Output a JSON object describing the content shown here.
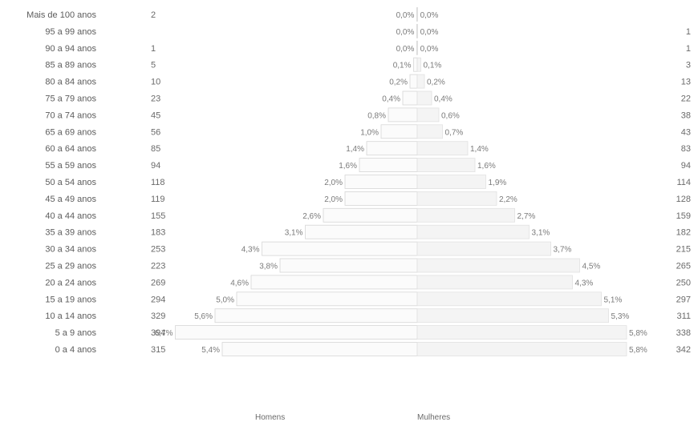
{
  "chart_data": {
    "type": "bar",
    "orientation": "horizontal",
    "layout": "population-pyramid",
    "categories": [
      "Mais de 100 anos",
      "95 a 99 anos",
      "90 a 94 anos",
      "85 a 89 anos",
      "80 a 84 anos",
      "75 a 79 anos",
      "70 a 74 anos",
      "65 a 69 anos",
      "60 a 64 anos",
      "55 a 59 anos",
      "50 a 54 anos",
      "45 a 49 anos",
      "40 a 44 anos",
      "35 a 39 anos",
      "30 a 34 anos",
      "25 a 29 anos",
      "20 a 24 anos",
      "15 a 19 anos",
      "10 a 14 anos",
      "5 a 9 anos",
      "0 a 4 anos"
    ],
    "series": [
      {
        "name": "Homens",
        "side": "left",
        "counts": [
          "2",
          "",
          "1",
          "5",
          "10",
          "23",
          "45",
          "56",
          "85",
          "94",
          "118",
          "119",
          "155",
          "183",
          "253",
          "223",
          "269",
          "294",
          "329",
          "394",
          "315"
        ],
        "values": [
          0.0,
          0.0,
          0.0,
          0.1,
          0.2,
          0.4,
          0.8,
          1.0,
          1.4,
          1.6,
          2.0,
          2.0,
          2.6,
          3.1,
          4.3,
          3.8,
          4.6,
          5.0,
          5.6,
          6.7,
          5.4
        ],
        "labels": [
          "0,0%",
          "0,0%",
          "0,0%",
          "0,1%",
          "0,2%",
          "0,4%",
          "0,8%",
          "1,0%",
          "1,4%",
          "1,6%",
          "2,0%",
          "2,0%",
          "2,6%",
          "3,1%",
          "4,3%",
          "3,8%",
          "4,6%",
          "5,0%",
          "5,6%",
          "6,7%",
          "5,4%"
        ]
      },
      {
        "name": "Mulheres",
        "side": "right",
        "counts": [
          "",
          "1",
          "1",
          "3",
          "13",
          "22",
          "38",
          "43",
          "83",
          "94",
          "114",
          "128",
          "159",
          "182",
          "215",
          "265",
          "250",
          "297",
          "311",
          "338",
          "342"
        ],
        "values": [
          0.0,
          0.0,
          0.0,
          0.1,
          0.2,
          0.4,
          0.6,
          0.7,
          1.4,
          1.6,
          1.9,
          2.2,
          2.7,
          3.1,
          3.7,
          4.5,
          4.3,
          5.1,
          5.3,
          5.8,
          5.8
        ],
        "labels": [
          "0,0%",
          "0,0%",
          "0,0%",
          "0,1%",
          "0,2%",
          "0,4%",
          "0,6%",
          "0,7%",
          "1,4%",
          "1,6%",
          "1,9%",
          "2,2%",
          "2,7%",
          "3,1%",
          "3,7%",
          "4,5%",
          "4,3%",
          "5,1%",
          "5,3%",
          "5,8%",
          "5,8%"
        ]
      }
    ],
    "title": "",
    "xlabel": "",
    "ylabel": "",
    "xlim": [
      0,
      7.5
    ],
    "grid": false,
    "legend": "bottom-center",
    "colors": {
      "male_fill": "#fbfbfb",
      "male_stroke": "#d6d6d6",
      "female_fill": "#f4f4f4",
      "female_stroke": "#e2e2e2",
      "text": "#6e6e6e"
    }
  }
}
